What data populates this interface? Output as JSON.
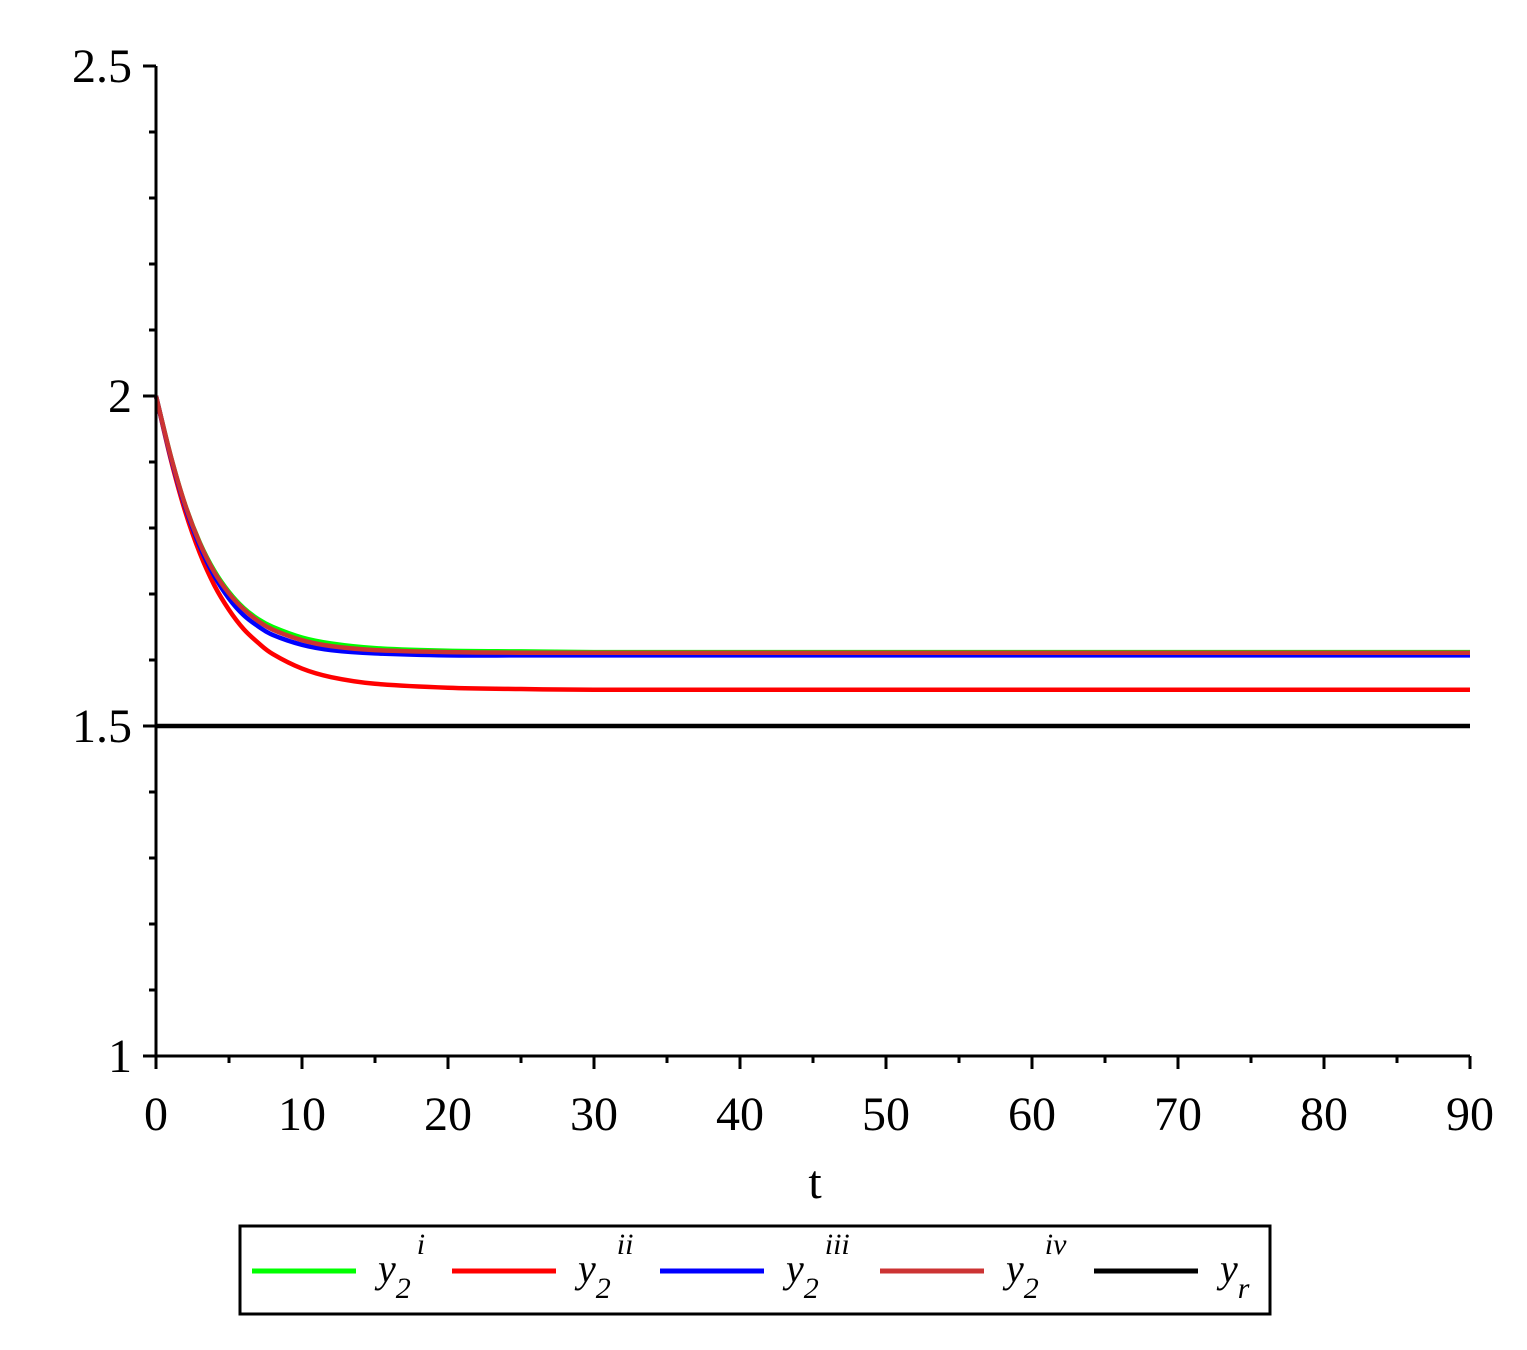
{
  "chart_data": {
    "type": "line",
    "title": "",
    "xlabel": "t",
    "ylabel": "",
    "xlim": [
      0,
      90
    ],
    "ylim": [
      1,
      2.5
    ],
    "x_ticks": [
      0,
      10,
      20,
      30,
      40,
      50,
      60,
      70,
      80,
      90
    ],
    "x_tick_labels": [
      "0",
      "10",
      "20",
      "30",
      "40",
      "50",
      "60",
      "70",
      "80",
      "90"
    ],
    "y_ticks": [
      1,
      1.5,
      2,
      2.5
    ],
    "y_tick_labels": [
      "1",
      "1.5",
      "2",
      "2.5"
    ],
    "x_minor_step": 5,
    "y_minor_step": 0.1,
    "grid": false,
    "legend_position": "bottom-center",
    "series": [
      {
        "name": "y2^i",
        "base": "y",
        "sub": "2",
        "sup": "i",
        "color": "#00ff00",
        "x": [
          0,
          1,
          2,
          3,
          4,
          5,
          6,
          7,
          8,
          10,
          12,
          15,
          20,
          25,
          30,
          40,
          50,
          60,
          70,
          80,
          90
        ],
        "y": [
          2.0,
          1.91,
          1.835,
          1.778,
          1.735,
          1.703,
          1.679,
          1.662,
          1.65,
          1.634,
          1.625,
          1.618,
          1.614,
          1.613,
          1.612,
          1.612,
          1.612,
          1.612,
          1.612,
          1.612,
          1.612
        ]
      },
      {
        "name": "y2^ii",
        "base": "y",
        "sub": "2",
        "sup": "ii",
        "color": "#ff0000",
        "x": [
          0,
          1,
          2,
          3,
          4,
          5,
          6,
          7,
          8,
          10,
          12,
          15,
          20,
          25,
          30,
          40,
          50,
          60,
          70,
          80,
          90
        ],
        "y": [
          2.0,
          1.905,
          1.825,
          1.762,
          1.713,
          1.676,
          1.647,
          1.626,
          1.609,
          1.587,
          1.574,
          1.564,
          1.558,
          1.556,
          1.555,
          1.555,
          1.555,
          1.555,
          1.555,
          1.555,
          1.555
        ]
      },
      {
        "name": "y2^iii",
        "base": "y",
        "sub": "2",
        "sup": "iii",
        "color": "#0000ff",
        "x": [
          0,
          1,
          2,
          3,
          4,
          5,
          6,
          7,
          8,
          10,
          12,
          15,
          20,
          25,
          30,
          40,
          50,
          60,
          70,
          80,
          90
        ],
        "y": [
          2.0,
          1.908,
          1.832,
          1.772,
          1.727,
          1.693,
          1.668,
          1.651,
          1.638,
          1.623,
          1.615,
          1.61,
          1.607,
          1.607,
          1.607,
          1.607,
          1.607,
          1.607,
          1.607,
          1.607,
          1.607
        ]
      },
      {
        "name": "y2^iv",
        "base": "y",
        "sub": "2",
        "sup": "iv",
        "color": "#cc3333",
        "x": [
          0,
          1,
          2,
          3,
          4,
          5,
          6,
          7,
          8,
          10,
          12,
          15,
          20,
          25,
          30,
          40,
          50,
          60,
          70,
          80,
          90
        ],
        "y": [
          2.0,
          1.91,
          1.835,
          1.777,
          1.733,
          1.701,
          1.677,
          1.659,
          1.646,
          1.63,
          1.621,
          1.615,
          1.612,
          1.611,
          1.611,
          1.611,
          1.611,
          1.611,
          1.611,
          1.611,
          1.611
        ]
      },
      {
        "name": "yr",
        "base": "y",
        "sub": "r",
        "sup": "",
        "color": "#000000",
        "x": [
          0,
          90
        ],
        "y": [
          1.5,
          1.5
        ]
      }
    ]
  }
}
